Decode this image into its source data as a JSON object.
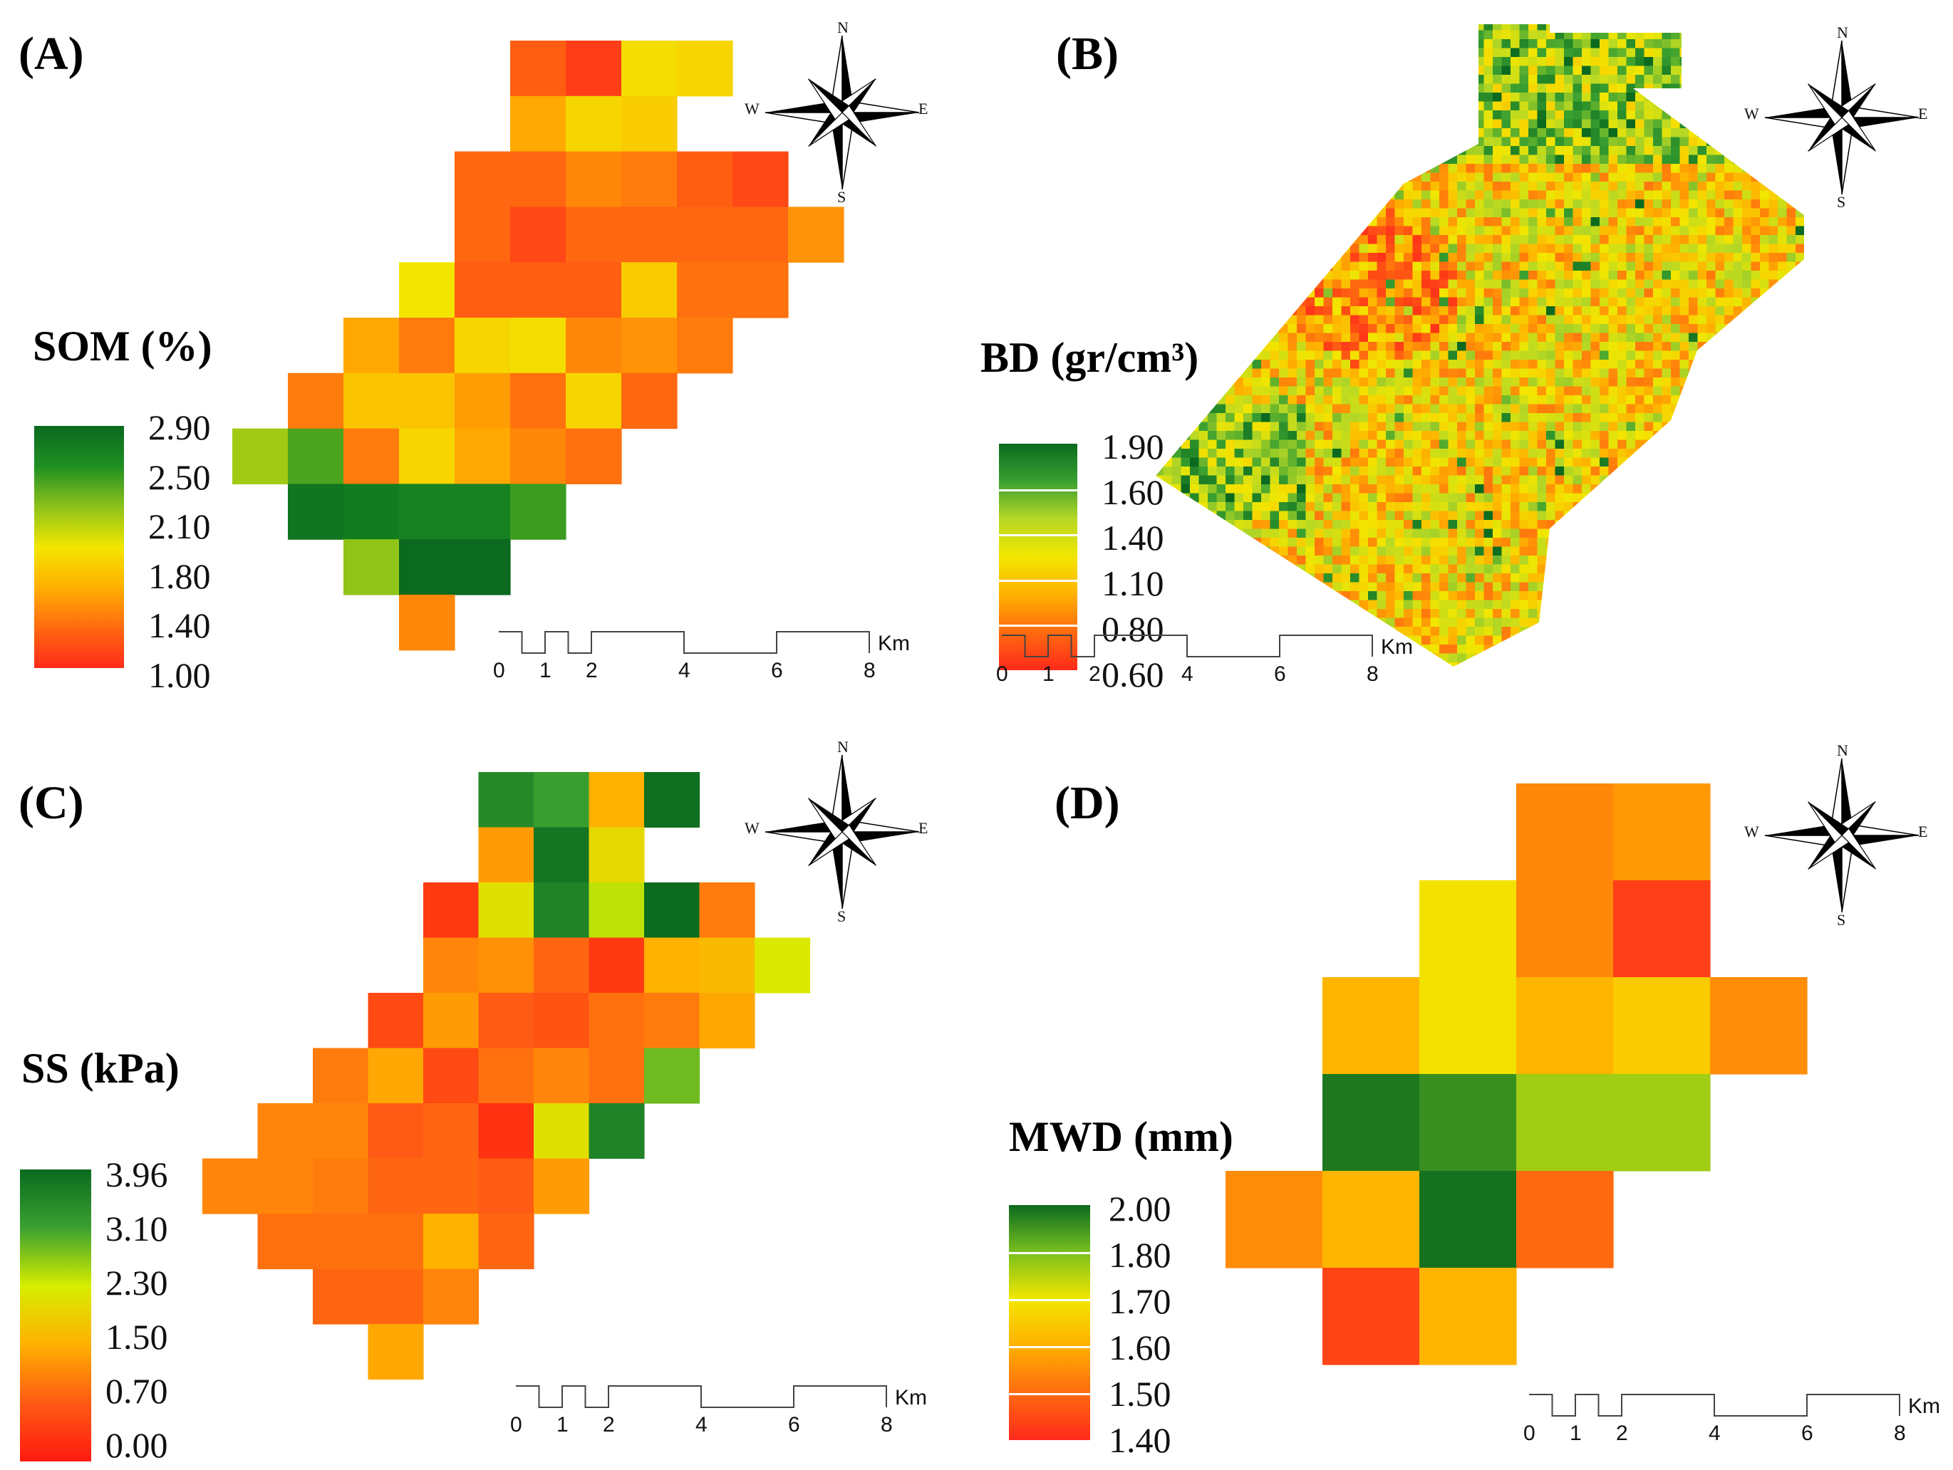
{
  "colors": {
    "ramp_som": [
      "#0b6a1f",
      "#1f8f22",
      "#8cc21a",
      "#f2e600",
      "#ffb000",
      "#ff6a10",
      "#ff2a1a"
    ],
    "ramp_bd": [
      "#0b6a1f",
      "#3aa030",
      "#b7d824",
      "#f2e600",
      "#ffb000",
      "#ff6a10",
      "#ff2a1a"
    ],
    "ramp_ss": [
      "#0b6a1f",
      "#3aa030",
      "#d7ee00",
      "#ffb000",
      "#ff5a14",
      "#ff1a10"
    ],
    "ramp_mwd": [
      "#0b6a1f",
      "#78c01e",
      "#f2e600",
      "#ffb000",
      "#ff6a10",
      "#ff2a1a"
    ]
  },
  "compass": {
    "north": "N",
    "south": "S",
    "east": "E",
    "west": "W",
    "icon": "compass-rose-icon"
  },
  "scale_bar": {
    "labels": [
      "0",
      "1",
      "2",
      "4",
      "6",
      "8"
    ],
    "unit": "Km"
  },
  "panels": [
    {
      "id": "A",
      "label": "(A)",
      "legend": {
        "title": "SOM (%)",
        "ticks": [
          "2.90",
          "2.50",
          "2.10",
          "1.80",
          "1.40",
          "1.00"
        ]
      },
      "grid": {
        "rows": [
          [
            null,
            null,
            null,
            null,
            null,
            1.25,
            1.1,
            1.9,
            1.85,
            null,
            null
          ],
          [
            null,
            null,
            null,
            null,
            null,
            1.6,
            1.85,
            1.8,
            null,
            null,
            null
          ],
          [
            null,
            null,
            null,
            null,
            1.3,
            1.3,
            1.45,
            1.4,
            1.25,
            1.15,
            null
          ],
          [
            null,
            null,
            null,
            null,
            1.3,
            1.15,
            1.3,
            1.3,
            1.3,
            1.3,
            1.5
          ],
          [
            null,
            null,
            null,
            1.95,
            1.25,
            1.25,
            1.25,
            1.8,
            1.35,
            1.35,
            null
          ],
          [
            null,
            null,
            1.6,
            1.4,
            1.85,
            1.9,
            1.45,
            1.5,
            1.4,
            null,
            null
          ],
          [
            null,
            1.4,
            1.75,
            1.75,
            1.55,
            1.35,
            1.85,
            1.3,
            null,
            null,
            null
          ],
          [
            2.2,
            2.45,
            1.4,
            1.85,
            1.6,
            1.45,
            1.35,
            null,
            null,
            null,
            null
          ],
          [
            null,
            2.8,
            2.75,
            2.7,
            2.7,
            2.5,
            null,
            null,
            null,
            null,
            null
          ],
          [
            null,
            null,
            2.25,
            2.9,
            2.9,
            null,
            null,
            null,
            null,
            null,
            null
          ],
          [
            null,
            null,
            null,
            1.45,
            null,
            null,
            null,
            null,
            null,
            null,
            null
          ]
        ]
      }
    },
    {
      "id": "B",
      "label": "(B)",
      "legend": {
        "title": "BD (gr/cm³)",
        "ticks": [
          "1.90",
          "1.60",
          "1.40",
          "1.10",
          "0.80",
          "0.60"
        ]
      }
    },
    {
      "id": "C",
      "label": "(C)",
      "legend": {
        "title": "SS (kPa)",
        "ticks": [
          "3.96",
          "3.10",
          "2.30",
          "1.50",
          "0.70",
          "0.00"
        ]
      },
      "grid": {
        "rows": [
          [
            null,
            null,
            null,
            null,
            null,
            3.5,
            3.2,
            1.6,
            3.9,
            null,
            null,
            null
          ],
          [
            null,
            null,
            null,
            null,
            null,
            1.4,
            3.8,
            2.1,
            null,
            null,
            null,
            null
          ],
          [
            null,
            null,
            null,
            null,
            0.4,
            2.2,
            3.6,
            2.5,
            3.95,
            1.1,
            null,
            null
          ],
          [
            null,
            null,
            null,
            null,
            1.2,
            1.3,
            0.9,
            0.4,
            1.6,
            1.7,
            2.3,
            null
          ],
          [
            null,
            null,
            null,
            0.6,
            1.4,
            0.8,
            0.7,
            1.0,
            1.1,
            1.5,
            null,
            null
          ],
          [
            null,
            null,
            1.1,
            1.5,
            0.6,
            1.0,
            1.2,
            1.0,
            2.9,
            null,
            null,
            null
          ],
          [
            null,
            1.2,
            1.2,
            0.8,
            0.9,
            0.3,
            2.2,
            3.6,
            null,
            null,
            null,
            null
          ],
          [
            1.2,
            1.2,
            1.1,
            0.9,
            0.9,
            0.8,
            1.4,
            null,
            null,
            null,
            null,
            null
          ],
          [
            null,
            1.0,
            1.0,
            1.0,
            1.6,
            0.9,
            null,
            null,
            null,
            null,
            null,
            null
          ],
          [
            null,
            null,
            0.9,
            0.9,
            1.2,
            null,
            null,
            null,
            null,
            null,
            null,
            null
          ],
          [
            null,
            null,
            null,
            1.5,
            null,
            null,
            null,
            null,
            null,
            null,
            null,
            null
          ]
        ]
      }
    },
    {
      "id": "D",
      "label": "(D)",
      "legend": {
        "title": "MWD (mm)",
        "ticks": [
          "2.00",
          "1.80",
          "1.70",
          "1.60",
          "1.50",
          "1.40"
        ]
      },
      "grid": {
        "rows": [
          [
            null,
            null,
            null,
            1.57,
            1.6,
            null
          ],
          [
            null,
            null,
            1.75,
            1.57,
            1.44,
            null
          ],
          [
            null,
            1.65,
            1.75,
            1.65,
            1.7,
            1.58
          ],
          [
            null,
            1.98,
            1.95,
            1.84,
            1.84,
            null
          ],
          [
            1.58,
            1.65,
            1.99,
            1.52,
            null,
            null
          ],
          [
            null,
            1.45,
            1.65,
            null,
            null,
            null
          ]
        ]
      }
    }
  ]
}
